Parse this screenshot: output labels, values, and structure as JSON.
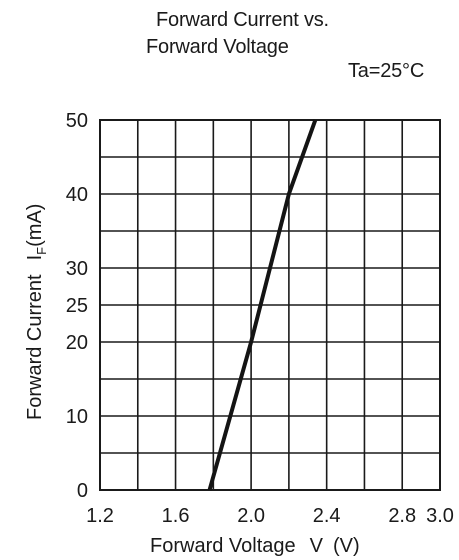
{
  "chart_data": {
    "type": "line",
    "title_line1": "Forward Current vs.",
    "title_line2": "Forward Voltage",
    "condition": "Ta=25°C",
    "xlabel": "Forward Voltage V (V)",
    "ylabel": "Forward Current I F (mA)",
    "ylabel_prefix": "Forward Current",
    "ylabel_symbol": "I",
    "ylabel_subscript": "F",
    "ylabel_unit": "(mA)",
    "xlabel_text": "Forward Voltage",
    "xlabel_symbol": "V",
    "xlabel_unit": "(V)",
    "xlim": [
      1.2,
      3.0
    ],
    "ylim": [
      0,
      50
    ],
    "x_ticks": [
      1.2,
      1.4,
      1.6,
      1.8,
      2.0,
      2.2,
      2.4,
      2.6,
      2.8,
      3.0
    ],
    "x_tick_labels": [
      "1.2",
      "",
      "1.6",
      "",
      "2.0",
      "",
      "2.4",
      "",
      "2.8",
      "3.0"
    ],
    "y_ticks": [
      0,
      5,
      10,
      15,
      20,
      25,
      30,
      35,
      40,
      45,
      50
    ],
    "y_tick_labels": [
      "0",
      "",
      "10",
      "",
      "20",
      "25",
      "30",
      "",
      "40",
      "",
      "50"
    ],
    "grid": true,
    "series": [
      {
        "x": [
          1.78,
          2.0,
          2.2,
          2.34
        ],
        "y": [
          0,
          20,
          40,
          50
        ]
      }
    ],
    "line_color": "#141414",
    "grid_color": "#1a1a1a"
  }
}
